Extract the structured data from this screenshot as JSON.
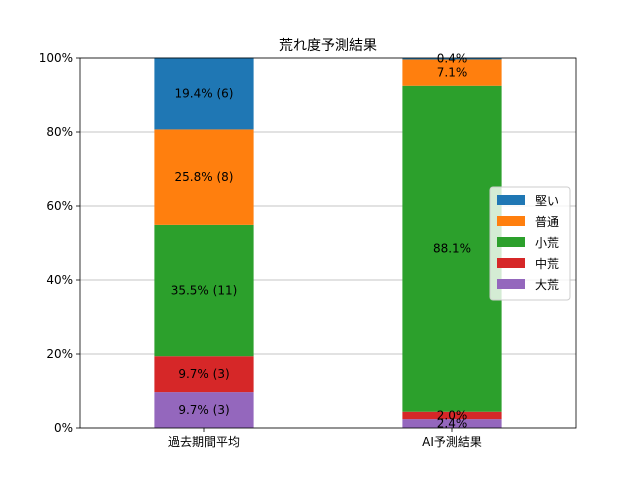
{
  "chart_data": {
    "type": "bar",
    "stacked": true,
    "title": "荒れ度予測結果",
    "xlabel": "",
    "ylabel": "",
    "ylim": [
      0,
      100
    ],
    "y_ticks": [
      0,
      20,
      40,
      60,
      80,
      100
    ],
    "y_tick_format": "{v}%",
    "grid": "y",
    "legend_position": "right",
    "categories": [
      "過去期間平均",
      "AI予測結果"
    ],
    "series": [
      {
        "name": "大荒",
        "color": "#9467bd",
        "values": [
          9.7,
          2.4
        ],
        "labels": [
          "9.7% (3)",
          "2.4%"
        ]
      },
      {
        "name": "中荒",
        "color": "#d62728",
        "values": [
          9.7,
          2.0
        ],
        "labels": [
          "9.7% (3)",
          "2.0%"
        ]
      },
      {
        "name": "小荒",
        "color": "#2ca02c",
        "values": [
          35.5,
          88.1
        ],
        "labels": [
          "35.5% (11)",
          "88.1%"
        ]
      },
      {
        "name": "普通",
        "color": "#ff7f0e",
        "values": [
          25.8,
          7.1
        ],
        "labels": [
          "25.8% (8)",
          "7.1%"
        ]
      },
      {
        "name": "堅い",
        "color": "#1f77b4",
        "values": [
          19.4,
          0.4
        ],
        "labels": [
          "19.4% (6)",
          "0.4%"
        ]
      }
    ],
    "legend_order": [
      "堅い",
      "普通",
      "小荒",
      "中荒",
      "大荒"
    ]
  }
}
